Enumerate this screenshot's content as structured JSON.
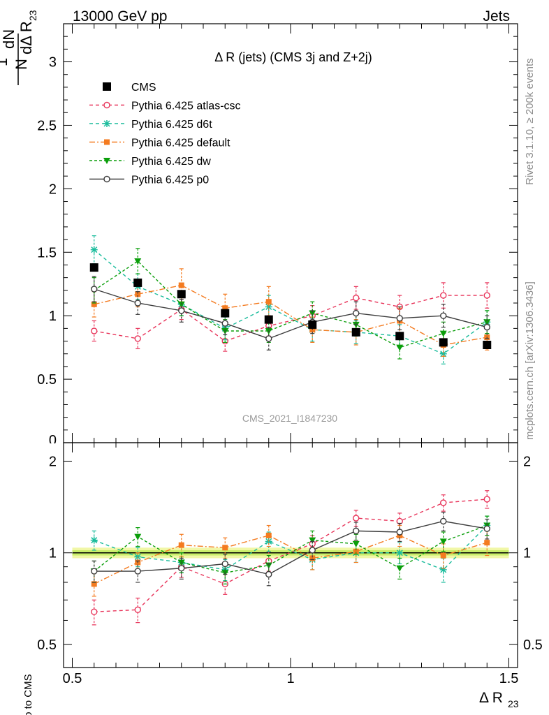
{
  "header": {
    "left": "13000 GeV pp",
    "right": "Jets"
  },
  "side_labels": {
    "rivet": "Rivet 3.1.10, ≥ 200k events",
    "mcplots": "mcplots.cern.ch [arXiv:1306.3436]"
  },
  "chart_data": [
    {
      "type": "scatter",
      "title": "Δ R (jets) (CMS 3j and Z+2j)",
      "watermark": "CMS_2021_I1847230",
      "ylabel": "1/N dN/dΔ R23",
      "xlim": [
        0.48,
        1.52
      ],
      "ylim": [
        0,
        3.3
      ],
      "yticks": [
        "0.5",
        "1",
        "1.5",
        "2",
        "2.5",
        "3"
      ],
      "x": [
        0.55,
        0.65,
        0.75,
        0.85,
        0.95,
        1.05,
        1.15,
        1.25,
        1.35,
        1.45
      ],
      "series": [
        {
          "name": "CMS",
          "color": "#000000",
          "marker": "square",
          "values": [
            1.38,
            1.26,
            1.17,
            1.02,
            0.97,
            0.93,
            0.87,
            0.84,
            0.79,
            0.77
          ],
          "err": [
            0.02,
            0.02,
            0.02,
            0.02,
            0.02,
            0.02,
            0.02,
            0.02,
            0.02,
            0.02
          ]
        },
        {
          "name": "Pythia 6.425 atlas-csc",
          "color": "#e8345a",
          "marker": "open-circle",
          "dash": "5,4",
          "values": [
            0.88,
            0.82,
            1.05,
            0.8,
            0.92,
            1.0,
            1.14,
            1.07,
            1.16,
            1.16
          ],
          "err": [
            0.08,
            0.08,
            0.08,
            0.08,
            0.08,
            0.08,
            0.09,
            0.09,
            0.1,
            0.1
          ]
        },
        {
          "name": "Pythia 6.425 d6t",
          "color": "#1abc9c",
          "marker": "star",
          "dash": "5,4",
          "values": [
            1.52,
            1.23,
            1.09,
            0.9,
            1.07,
            0.89,
            0.87,
            0.84,
            0.7,
            0.95
          ],
          "err": [
            0.11,
            0.1,
            0.09,
            0.09,
            0.09,
            0.09,
            0.09,
            0.09,
            0.08,
            0.09
          ]
        },
        {
          "name": "Pythia 6.425 default",
          "color": "#f47b20",
          "marker": "filled-square",
          "dash": "8,3,2,3",
          "values": [
            1.09,
            1.17,
            1.24,
            1.06,
            1.11,
            0.89,
            0.87,
            0.96,
            0.77,
            0.83
          ],
          "err": [
            0.1,
            0.1,
            0.13,
            0.11,
            0.12,
            0.1,
            0.1,
            0.1,
            0.09,
            0.1
          ]
        },
        {
          "name": "Pythia 6.425 dw",
          "color": "#0a9e0a",
          "marker": "triangle-down",
          "dash": "4,3",
          "values": [
            1.2,
            1.43,
            1.09,
            0.88,
            0.88,
            1.02,
            0.93,
            0.75,
            0.86,
            0.95
          ],
          "err": [
            0.1,
            0.1,
            0.09,
            0.09,
            0.09,
            0.09,
            0.09,
            0.09,
            0.09,
            0.09
          ]
        },
        {
          "name": "Pythia 6.425 p0",
          "color": "#3c3c3c",
          "marker": "open-circle",
          "dash": "",
          "values": [
            1.21,
            1.1,
            1.04,
            0.94,
            0.82,
            0.95,
            1.02,
            0.98,
            1.0,
            0.91
          ],
          "err": [
            0.1,
            0.09,
            0.09,
            0.09,
            0.09,
            0.09,
            0.09,
            0.09,
            0.09,
            0.09
          ]
        }
      ]
    },
    {
      "type": "scatter",
      "ylabel": "Ratio to CMS",
      "xlabel": "Δ R23",
      "xlim": [
        0.48,
        1.52
      ],
      "ylim": [
        0.42,
        2.3
      ],
      "log_y": true,
      "yticks": [
        "0.5",
        "1",
        "2"
      ],
      "xticks": [
        "0.5",
        "1",
        "1.5"
      ],
      "x": [
        0.55,
        0.65,
        0.75,
        0.85,
        0.95,
        1.05,
        1.15,
        1.25,
        1.35,
        1.45
      ],
      "band": {
        "inner": [
          0.98,
          1.02
        ],
        "outer": [
          0.96,
          1.04
        ]
      },
      "series": [
        {
          "name": "Pythia 6.425 atlas-csc",
          "color": "#e8345a",
          "marker": "open-circle",
          "dash": "5,4",
          "values": [
            0.64,
            0.65,
            0.9,
            0.79,
            0.94,
            1.07,
            1.3,
            1.27,
            1.46,
            1.5
          ],
          "err": [
            0.06,
            0.06,
            0.07,
            0.06,
            0.07,
            0.07,
            0.08,
            0.08,
            0.09,
            0.1
          ]
        },
        {
          "name": "Pythia 6.425 d6t",
          "color": "#1abc9c",
          "marker": "star",
          "dash": "5,4",
          "values": [
            1.1,
            0.97,
            0.93,
            0.88,
            1.09,
            0.95,
            1.0,
            1.0,
            0.88,
            1.23
          ],
          "err": [
            0.08,
            0.07,
            0.07,
            0.07,
            0.08,
            0.07,
            0.07,
            0.08,
            0.08,
            0.09
          ]
        },
        {
          "name": "Pythia 6.425 default",
          "color": "#f47b20",
          "marker": "filled-square",
          "dash": "8,3,2,3",
          "values": [
            0.79,
            0.93,
            1.06,
            1.04,
            1.14,
            0.96,
            1.01,
            1.14,
            0.98,
            1.08
          ],
          "err": [
            0.07,
            0.07,
            0.09,
            0.08,
            0.09,
            0.08,
            0.08,
            0.09,
            0.09,
            0.1
          ]
        },
        {
          "name": "Pythia 6.425 dw",
          "color": "#0a9e0a",
          "marker": "triangle-down",
          "dash": "4,3",
          "values": [
            0.87,
            1.13,
            0.93,
            0.86,
            0.91,
            1.1,
            1.07,
            0.89,
            1.09,
            1.23
          ],
          "err": [
            0.07,
            0.08,
            0.07,
            0.07,
            0.07,
            0.08,
            0.08,
            0.07,
            0.08,
            0.09
          ]
        },
        {
          "name": "Pythia 6.425 p0",
          "color": "#3c3c3c",
          "marker": "open-circle",
          "dash": "",
          "values": [
            0.87,
            0.87,
            0.89,
            0.92,
            0.85,
            1.02,
            1.18,
            1.17,
            1.27,
            1.2
          ],
          "err": [
            0.07,
            0.07,
            0.07,
            0.07,
            0.07,
            0.07,
            0.08,
            0.08,
            0.09,
            0.09
          ]
        }
      ]
    }
  ]
}
